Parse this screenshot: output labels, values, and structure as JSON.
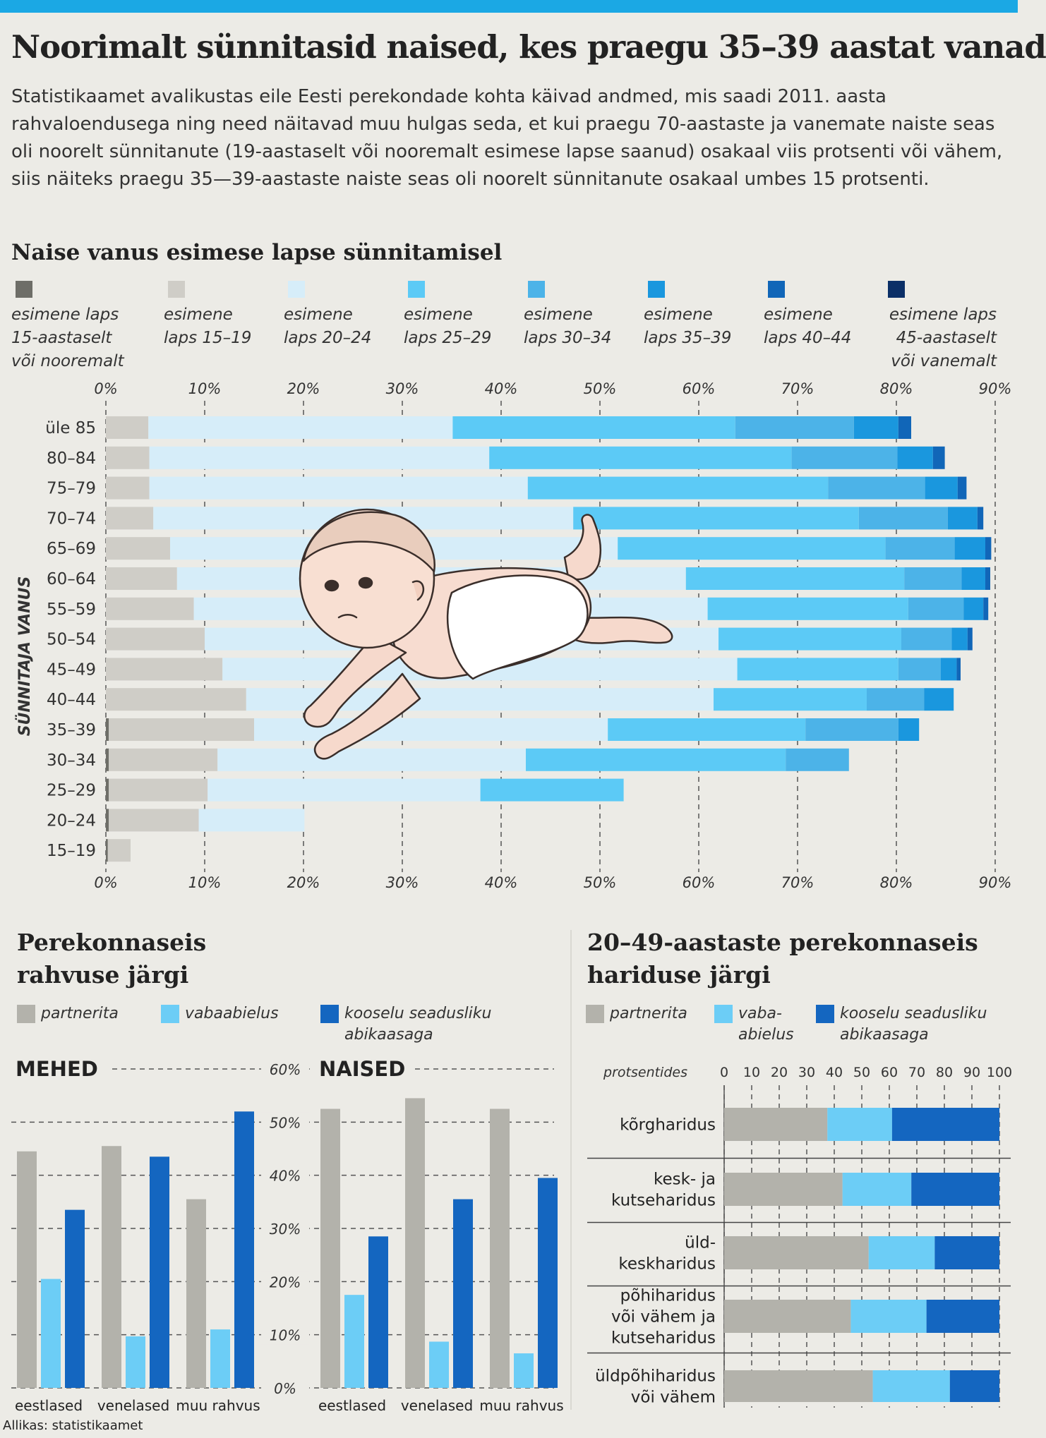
{
  "title": "Noorimalt sünnitasid naised, kes praegu 35–39 aastat vanad",
  "intro": "Statistikaamet avalikustas eile Eesti perekondade kohta käivad andmed, mis saadi 2011. aasta rahvaloendusega ning need näitavad muu hulgas seda, et kui praegu 70-aastaste ja vanemate naiste seas oli noorelt sünnitanute (19-aastaselt või nooremalt esimese lapse saanud) osakaal viis protsenti või vähem, siis näiteks praegu 35—39-aastaste naiste seas oli noorelt sünnitanute osakaal umbes 15 protsenti.",
  "source": "Allikas: statistikaamet",
  "colors": {
    "bg": "#ecebe6",
    "accent": "#1ba8e4",
    "stack": [
      "#6e6e68",
      "#cfcdc7",
      "#d6edf9",
      "#5ccaf6",
      "#4cb3e8",
      "#1a97de",
      "#1166b8",
      "#0b2f67"
    ],
    "partnerita": "#b3b2ab",
    "vabaabielus": "#6ccdf6",
    "kooselu": "#1466c0"
  },
  "chart_data": [
    {
      "type": "bar",
      "orientation": "horizontal",
      "stacked": true,
      "title": "Naise vanus esimese lapse sünnitamisel",
      "ylabel": "SÜNNITAJA VANUS",
      "xlim": [
        0,
        90
      ],
      "xticks": [
        "0%",
        "10%",
        "20%",
        "30%",
        "40%",
        "50%",
        "60%",
        "70%",
        "80%",
        "90%"
      ],
      "legend": [
        "esimene laps 15-aastaselt või nooremalt",
        "esimene laps 15–19",
        "esimene laps 20–24",
        "esimene laps 25–29",
        "esimene laps 30–34",
        "esimene laps 35–39",
        "esimene laps 40–44",
        "esimene laps 45-aastaselt või vanemalt"
      ],
      "categories": [
        "üle 85",
        "80–84",
        "75–79",
        "70–74",
        "65–69",
        "60–64",
        "55–59",
        "50–54",
        "45–49",
        "40–44",
        "35–39",
        "30–34",
        "25–29",
        "20–24",
        "15–19"
      ],
      "series": [
        {
          "name": "15 või nooremalt",
          "values": [
            0,
            0,
            0,
            0,
            0,
            0,
            0,
            0,
            0,
            0,
            0.3,
            0.3,
            0.3,
            0.3,
            0.2
          ]
        },
        {
          "name": "15–19",
          "values": [
            4.3,
            4.4,
            4.4,
            4.8,
            6.5,
            7.2,
            8.9,
            10.0,
            11.8,
            14.2,
            14.7,
            11.0,
            10.0,
            9.1,
            2.3
          ]
        },
        {
          "name": "20–24",
          "values": [
            30.8,
            34.4,
            38.3,
            42.5,
            45.3,
            51.5,
            52.0,
            52.0,
            52.1,
            47.3,
            35.8,
            31.2,
            27.6,
            10.7,
            0
          ]
        },
        {
          "name": "25–29",
          "values": [
            28.6,
            30.6,
            30.4,
            28.9,
            27.1,
            22.1,
            20.3,
            18.5,
            16.3,
            15.5,
            20.0,
            26.3,
            14.5,
            0,
            0
          ]
        },
        {
          "name": "30–34",
          "values": [
            12.0,
            10.7,
            9.8,
            9.0,
            7.0,
            5.8,
            5.6,
            5.1,
            4.3,
            5.8,
            9.4,
            6.4,
            0,
            0,
            0
          ]
        },
        {
          "name": "35–39",
          "values": [
            4.5,
            3.6,
            3.3,
            3.0,
            3.1,
            2.4,
            2.0,
            1.6,
            1.6,
            3.0,
            2.1,
            0,
            0,
            0,
            0
          ]
        },
        {
          "name": "40–44",
          "values": [
            1.3,
            1.2,
            0.9,
            0.6,
            0.6,
            0.5,
            0.5,
            0.5,
            0.4,
            0,
            0,
            0,
            0,
            0,
            0
          ]
        },
        {
          "name": "45 või vanemalt",
          "values": [
            0,
            0,
            0,
            0,
            0,
            0,
            0,
            0,
            0,
            0,
            0,
            0,
            0,
            0,
            0
          ]
        }
      ]
    },
    {
      "type": "bar",
      "title": "Perekonnaseis rahvuse järgi",
      "legend": [
        "partnerita",
        "vabaabielus",
        "kooselu seadusliku abikaasaga"
      ],
      "ylim": [
        0,
        60
      ],
      "yticks": [
        "0%",
        "10%",
        "20%",
        "30%",
        "40%",
        "50%",
        "60%"
      ],
      "panels": [
        {
          "name": "MEHED",
          "categories": [
            "eestlased",
            "venelased",
            "muu rahvus"
          ],
          "series": [
            {
              "name": "partnerita",
              "values": [
                44.5,
                45.5,
                35.5
              ]
            },
            {
              "name": "vabaabielus",
              "values": [
                20.5,
                9.7,
                11.0
              ]
            },
            {
              "name": "kooselu seadusliku abikaasaga",
              "values": [
                33.5,
                43.5,
                52.0
              ]
            }
          ]
        },
        {
          "name": "NAISED",
          "categories": [
            "eestlased",
            "venelased",
            "muu rahvus"
          ],
          "series": [
            {
              "name": "partnerita",
              "values": [
                52.5,
                54.5,
                52.5
              ]
            },
            {
              "name": "vabaabielus",
              "values": [
                17.5,
                8.7,
                6.5
              ]
            },
            {
              "name": "kooselu seadusliku abikaasaga",
              "values": [
                28.5,
                35.5,
                39.5
              ]
            }
          ]
        }
      ]
    },
    {
      "type": "bar",
      "orientation": "horizontal",
      "stacked": true,
      "title": "20–49-aastaste perekonnaseis hariduse järgi",
      "xlabel": "protsentides",
      "xlim": [
        0,
        100
      ],
      "xticks": [
        "0",
        "10",
        "20",
        "30",
        "40",
        "50",
        "60",
        "70",
        "80",
        "90",
        "100"
      ],
      "legend": [
        "partnerita",
        "vaba-abielus",
        "kooselu seadusliku abikaasaga"
      ],
      "categories": [
        "kõrgharidus",
        "kesk- ja kutseharidus",
        "üld-keskharidus",
        "põhiharidus või vähem ja kutseharidus",
        "üldpõhiharidus või vähem"
      ],
      "series": [
        {
          "name": "partnerita",
          "values": [
            37.5,
            43,
            52.5,
            46,
            54
          ]
        },
        {
          "name": "vabaabielus",
          "values": [
            23.5,
            25,
            24,
            27.5,
            28
          ]
        },
        {
          "name": "kooselu seadusliku abikaasaga",
          "values": [
            39,
            32,
            23.5,
            26.5,
            18
          ]
        }
      ]
    }
  ],
  "labels": {
    "cat_labels_edu": [
      [
        "kõrgharidus"
      ],
      [
        "kesk- ja",
        "kutseharidus"
      ],
      [
        "üld-",
        "keskharidus"
      ],
      [
        "põhiharidus",
        "või vähem ja",
        "kutseharidus"
      ],
      [
        "üldpõhiharidus",
        "või vähem"
      ]
    ],
    "legend_lines_main": [
      [
        "esimene laps",
        "15-aastaselt",
        "või nooremalt"
      ],
      [
        "esimene",
        "laps 15–19"
      ],
      [
        "esimene",
        "laps 20–24"
      ],
      [
        "esimene",
        "laps 25–29"
      ],
      [
        "esimene",
        "laps 30–34"
      ],
      [
        "esimene",
        "laps 35–39"
      ],
      [
        "esimene",
        "laps 40–44"
      ],
      [
        "esimene laps",
        "45-aastaselt",
        "või vanemalt"
      ]
    ],
    "sec2_title": [
      "Perekonnaseis",
      "rahvuse järgi"
    ],
    "sec3_title": [
      "20–49-aastaste perekonnaseis",
      "hariduse järgi"
    ],
    "legend2": [
      [
        "partnerita"
      ],
      [
        "vabaabielus"
      ],
      [
        "kooselu seadusliku",
        "abikaasaga"
      ]
    ],
    "legend3": [
      [
        "partnerita"
      ],
      [
        "vaba-",
        "abielus"
      ],
      [
        "kooselu seadusliku",
        "abikaasaga"
      ]
    ]
  }
}
